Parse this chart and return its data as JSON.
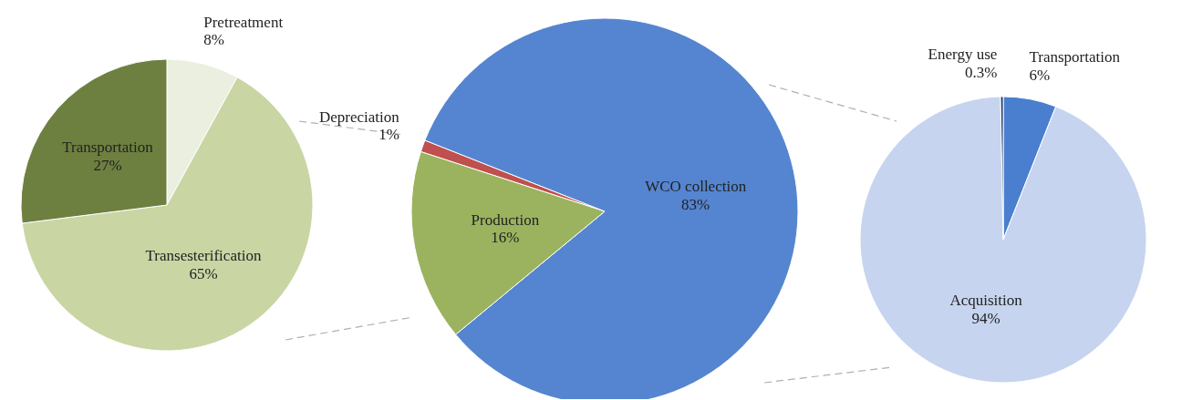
{
  "chart_data": [
    {
      "type": "pie",
      "categories": [
        "Pretreatment",
        "Transesterification",
        "Transportation"
      ],
      "values": [
        8,
        65,
        27
      ],
      "value_labels": [
        "8%",
        "65%",
        "27%"
      ],
      "colors": [
        "#ebefdf",
        "#c9d5a3",
        "#6e8040"
      ]
    },
    {
      "type": "pie",
      "categories": [
        "Depreciation",
        "WCO collection",
        "Production"
      ],
      "values": [
        1,
        83,
        16
      ],
      "value_labels": [
        "1%",
        "83%",
        "16%"
      ],
      "colors": [
        "#c0504d",
        "#5585d0",
        "#9bb35e"
      ]
    },
    {
      "type": "pie",
      "categories": [
        "Transportation",
        "Acquisition",
        "Energy use"
      ],
      "values": [
        6,
        94,
        0.3
      ],
      "value_labels": [
        "6%",
        "94%",
        "0.3%"
      ],
      "colors": [
        "#4a7fcf",
        "#c6d4ef",
        "#1f3864"
      ]
    }
  ]
}
